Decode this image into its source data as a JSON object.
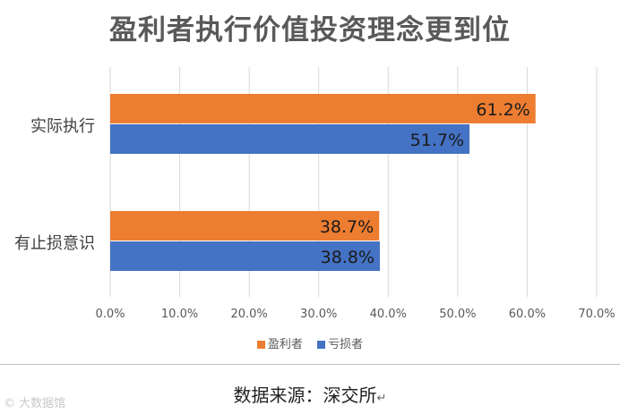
{
  "chart_data": {
    "type": "bar",
    "orientation": "horizontal",
    "title": "盈利者执行价值投资理念更到位",
    "categories": [
      "实际执行",
      "有止损意识"
    ],
    "series": [
      {
        "name": "盈利者",
        "color": "#ED7D31",
        "values": [
          61.2,
          38.7
        ],
        "labels": [
          "61.2%",
          "38.7%"
        ]
      },
      {
        "name": "亏损者",
        "color": "#4472C4",
        "values": [
          51.7,
          38.8
        ],
        "labels": [
          "51.7%",
          "38.8%"
        ]
      }
    ],
    "xlim": [
      0,
      70
    ],
    "xticks": [
      0,
      10,
      20,
      30,
      40,
      50,
      60,
      70
    ],
    "xtick_labels": [
      "0.0%",
      "10.0%",
      "20.0%",
      "30.0%",
      "40.0%",
      "50.0%",
      "60.0%",
      "70.0%"
    ],
    "grid": "vertical",
    "legend_position": "bottom"
  },
  "footer": {
    "source": "数据来源：深交所",
    "return_mark": "↵",
    "watermark": "© 大数据馆"
  }
}
